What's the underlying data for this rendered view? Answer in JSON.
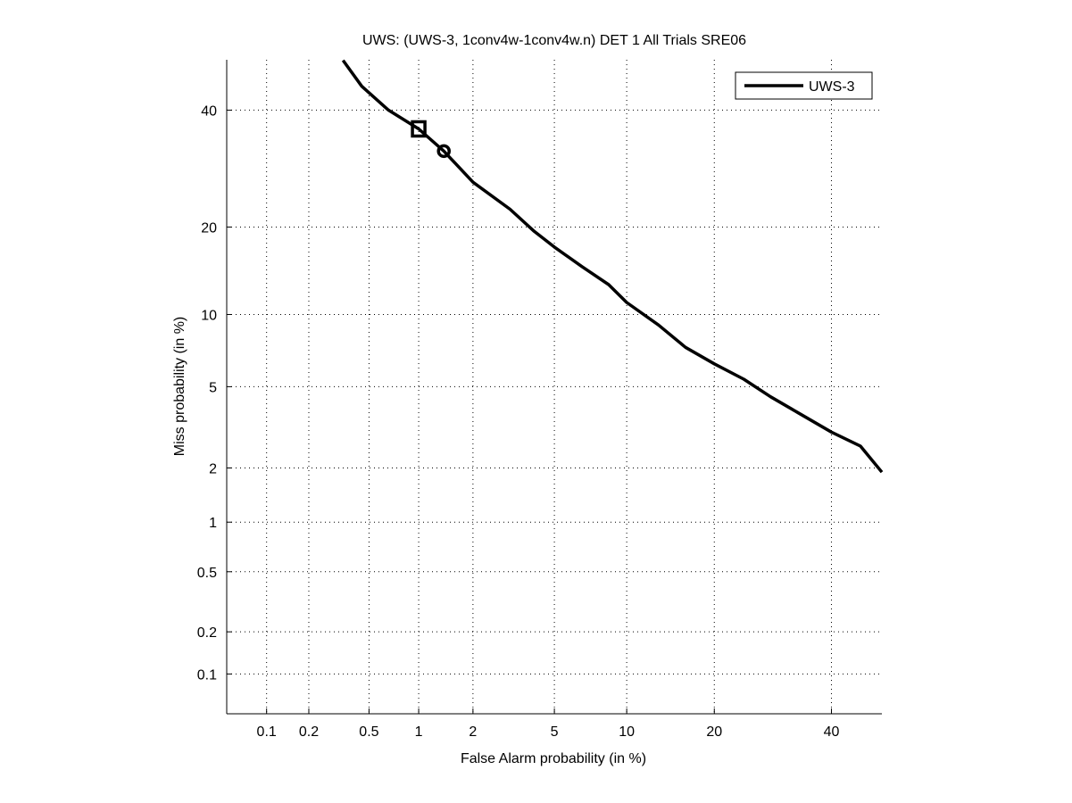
{
  "chart_data": {
    "type": "line",
    "title": "UWS: (UWS-3, 1conv4w-1conv4w.n) DET 1 All Trials SRE06",
    "xlabel": "False Alarm probability (in %)",
    "ylabel": "Miss probability (in %)",
    "scale": "normal-deviate",
    "xlim": [
      0.05,
      50
    ],
    "ylim": [
      0.05,
      50
    ],
    "xticks": [
      0.1,
      0.2,
      0.5,
      1,
      2,
      5,
      10,
      20,
      40
    ],
    "xtick_labels": [
      "0.1",
      "0.2",
      "0.5",
      "1",
      "2",
      "5",
      "10",
      "20",
      "40"
    ],
    "yticks": [
      0.1,
      0.2,
      0.5,
      1,
      2,
      5,
      10,
      20,
      40
    ],
    "ytick_labels": [
      "0.1",
      "0.2",
      "0.5",
      "1",
      "2",
      "5",
      "10",
      "20",
      "40"
    ],
    "grid": true,
    "legend": {
      "placement": "top-right",
      "entries": [
        "UWS-3"
      ]
    },
    "series": [
      {
        "name": "UWS-3",
        "color": "#000000",
        "x": [
          0.34,
          0.45,
          0.66,
          1.0,
          1.39,
          2.0,
          3.09,
          4.04,
          5.0,
          6.6,
          8.5,
          10.0,
          13.1,
          16.2,
          20.0,
          24.4,
          28.8,
          33.6,
          40.0,
          45.7,
          50.0
        ],
        "y": [
          49.9,
          44.7,
          40.0,
          36.4,
          32.3,
          26.9,
          22.6,
          19.4,
          17.3,
          14.9,
          12.9,
          11.1,
          9.1,
          7.4,
          6.3,
          5.4,
          4.5,
          3.8,
          3.05,
          2.6,
          1.9
        ]
      }
    ],
    "markers": [
      {
        "shape": "square",
        "x": 1.0,
        "y": 36.4
      },
      {
        "shape": "circle",
        "x": 1.39,
        "y": 32.3
      }
    ]
  }
}
